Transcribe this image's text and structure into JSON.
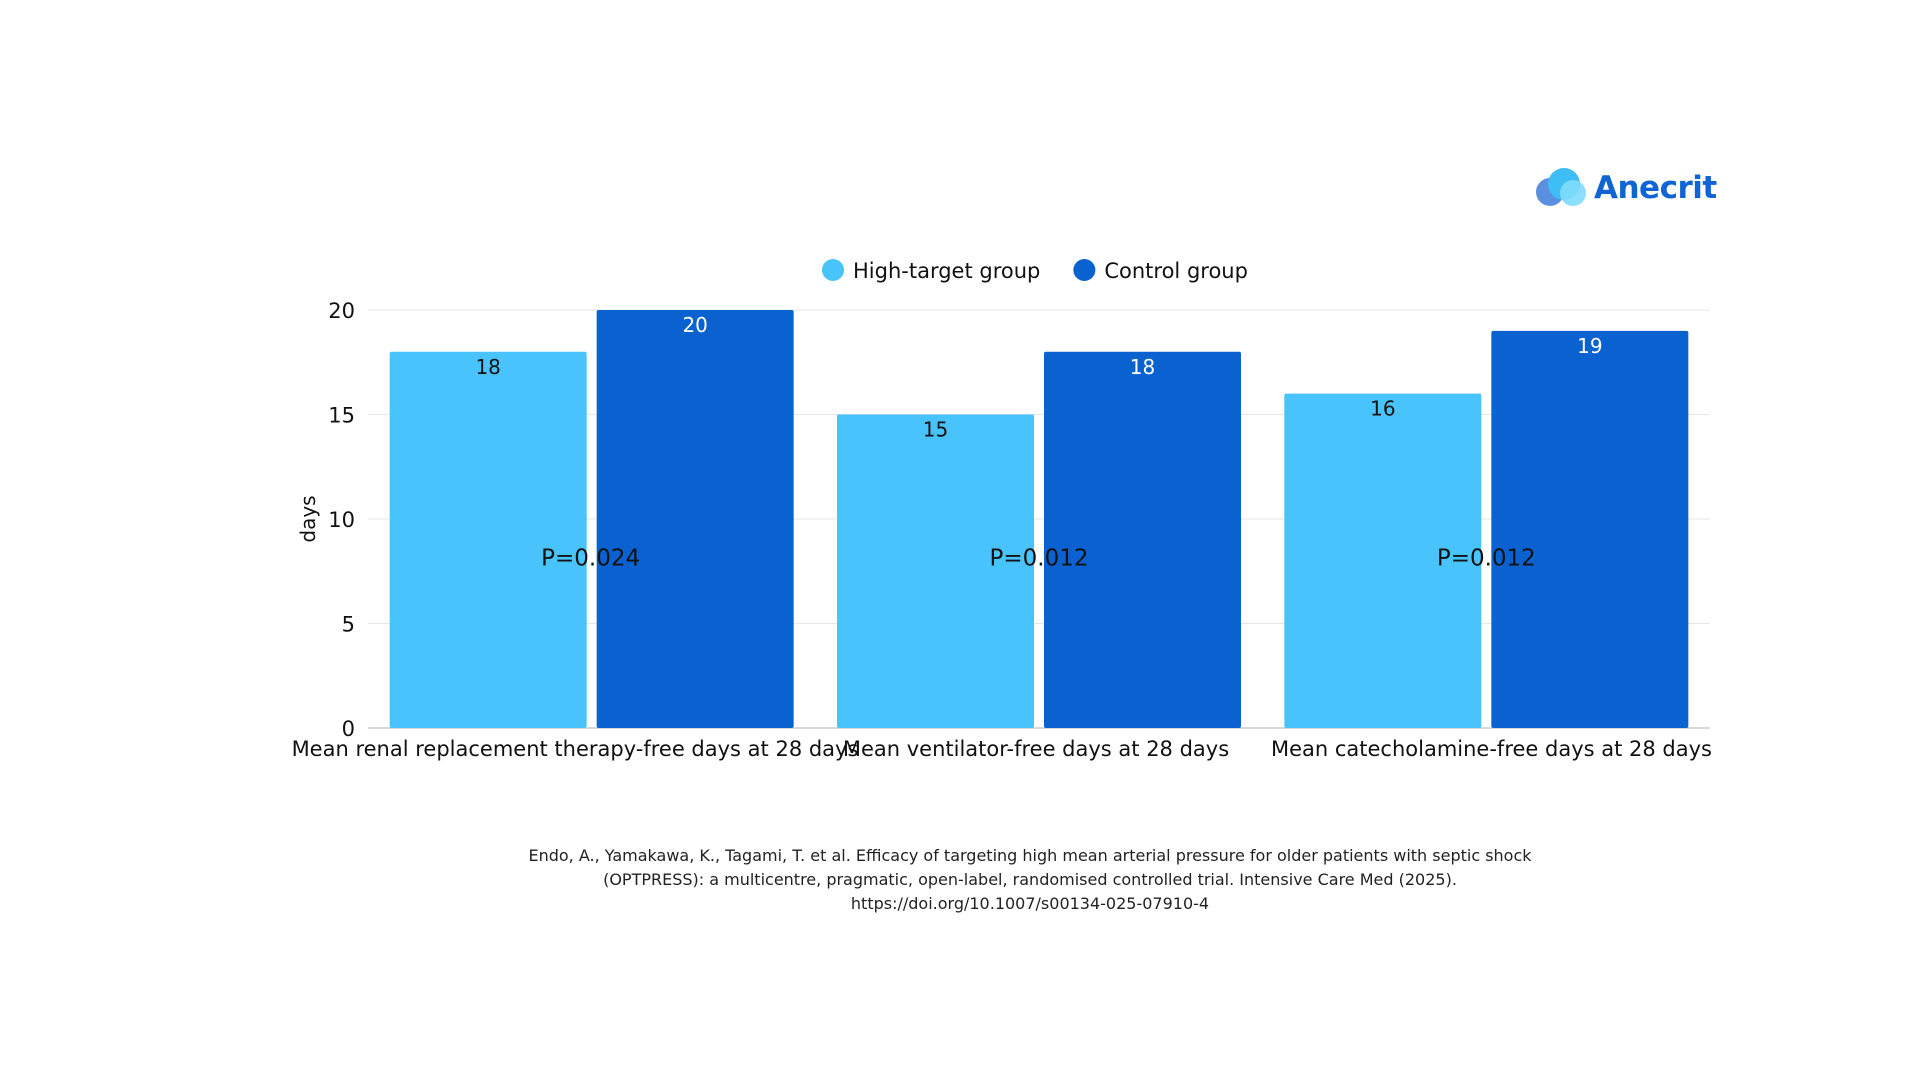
{
  "brand": {
    "logo_text": "Anecrit",
    "logo_icon": "overlapping-circles-logo"
  },
  "chart_data": {
    "type": "bar",
    "title": "",
    "xlabel": "",
    "ylabel": "days",
    "ylim": [
      0,
      20
    ],
    "yticks": [
      0,
      5,
      10,
      15,
      20
    ],
    "grid": true,
    "legend_position": "top-center",
    "categories": [
      "Mean renal replacement therapy-free days at 28 days",
      "Mean ventilator-free days at 28 days",
      "Mean catecholamine-free days at 28 days"
    ],
    "series": [
      {
        "name": "High-target group",
        "color": "#49c3fb",
        "label_color": "#111111",
        "values": [
          18,
          15,
          16
        ]
      },
      {
        "name": "Control group",
        "color": "#0a62d0",
        "label_color": "#ffffff",
        "values": [
          20,
          18,
          19
        ]
      }
    ],
    "annotations": [
      {
        "text": "P=0.024",
        "category_index": 0,
        "y": 8.2
      },
      {
        "text": "P=0.012",
        "category_index": 1,
        "y": 8.2
      },
      {
        "text": "P=0.012",
        "category_index": 2,
        "y": 8.2
      }
    ]
  },
  "citation": {
    "line1": "Endo, A., Yamakawa, K., Tagami, T. et al. Efficacy of targeting high mean arterial pressure for older patients with septic shock",
    "line2": "(OPTPRESS): a multicentre, pragmatic, open-label, randomised controlled trial. Intensive Care Med (2025).",
    "line3": "https://doi.org/10.1007/s00134-025-07910-4"
  }
}
